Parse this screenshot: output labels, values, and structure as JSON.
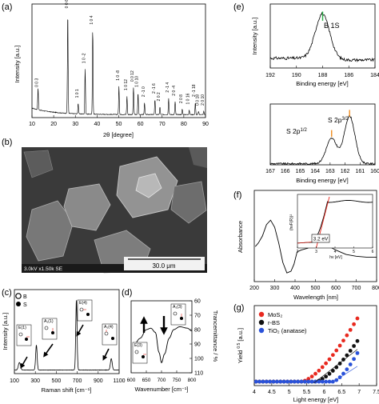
{
  "panels": {
    "a": "(a)",
    "b": "(b)",
    "c": "(c)",
    "d": "(d)",
    "e": "(e)",
    "f": "(f)",
    "g": "(g)"
  },
  "sem": {
    "info": "3.0kV x1.50k SE",
    "scale_bar": "30.0 μm"
  },
  "chart_data": [
    {
      "id": "a",
      "type": "line",
      "xlabel": "2θ [degree]",
      "ylabel": "Intensity [a.u.]",
      "xlim": [
        10,
        90
      ],
      "xticks": [
        10,
        20,
        30,
        40,
        50,
        60,
        70,
        80,
        90
      ],
      "peaks": [
        {
          "x": 12.8,
          "h": 0.2,
          "label": "0 0 3"
        },
        {
          "x": 26.5,
          "h": 0.93,
          "label": "0 0 6"
        },
        {
          "x": 31.3,
          "h": 0.1,
          "label": "1 0 1"
        },
        {
          "x": 34.5,
          "h": 0.42,
          "label": "1 0 -2"
        },
        {
          "x": 38.0,
          "h": 0.78,
          "label": "1 0 4"
        },
        {
          "x": 50.1,
          "h": 0.26,
          "label": "1 0 -8"
        },
        {
          "x": 53.8,
          "h": 0.17,
          "label": "1 0 12"
        },
        {
          "x": 56.8,
          "h": 0.25,
          "label": "0 0 12"
        },
        {
          "x": 58.9,
          "h": 0.2,
          "label": "1 0 10"
        },
        {
          "x": 61.9,
          "h": 0.11,
          "label": "2 -1 0"
        },
        {
          "x": 66.7,
          "h": 0.14,
          "label": "2 -1 6"
        },
        {
          "x": 69.0,
          "h": 0.07,
          "label": "2 0 2"
        },
        {
          "x": 73.0,
          "h": 0.15,
          "label": "2 -1 4"
        },
        {
          "x": 76.0,
          "h": 0.12,
          "label": "2 0 -4"
        },
        {
          "x": 79.3,
          "h": 0.05,
          "label": "2 0 8"
        },
        {
          "x": 82.5,
          "h": 0.04,
          "label": "1 0 16"
        },
        {
          "x": 85.3,
          "h": 0.11,
          "label": "2 -1 18"
        },
        {
          "x": 86.8,
          "h": 0.03,
          "label": "0 0 18"
        },
        {
          "x": 89.2,
          "h": 0.03,
          "label": "2 0 10"
        }
      ]
    },
    {
      "id": "c",
      "type": "line",
      "xlabel": "Raman shift [cm⁻¹]",
      "ylabel": "Intensity [a.u.]",
      "xlim": [
        100,
        1100
      ],
      "xticks": [
        100,
        300,
        500,
        700,
        900,
        1100
      ],
      "legend": [
        "B",
        "S"
      ],
      "peaks": [
        {
          "x": 148,
          "h": 0.1,
          "w": 14
        },
        {
          "x": 310,
          "h": 0.33,
          "w": 10
        },
        {
          "x": 692,
          "h": 0.92,
          "w": 9
        },
        {
          "x": 1025,
          "h": 0.15,
          "w": 12
        }
      ],
      "mode_labels": [
        "E(1)",
        "A₁(1)",
        "E(4)",
        "A₁(4)"
      ]
    },
    {
      "id": "d",
      "type": "line",
      "xlabel": "Wavenumber [cm⁻¹]",
      "ylabel": "Trancemittance / %",
      "xlim": [
        600,
        800
      ],
      "xticks": [
        600,
        650,
        700,
        750,
        800
      ],
      "ylim": [
        110,
        60
      ],
      "yticks": [
        60,
        70,
        80,
        90,
        100,
        110
      ],
      "mode_labels": [
        "A₁(3)",
        "E(3)"
      ],
      "points": [
        [
          605,
          92
        ],
        [
          630,
          86
        ],
        [
          650,
          80
        ],
        [
          665,
          79
        ],
        [
          680,
          82
        ],
        [
          692,
          96
        ],
        [
          700,
          103
        ],
        [
          710,
          97
        ],
        [
          725,
          86
        ],
        [
          740,
          80
        ],
        [
          760,
          78
        ],
        [
          785,
          79
        ],
        [
          800,
          81
        ]
      ]
    },
    {
      "id": "e1",
      "type": "line",
      "annotation": "B 1S",
      "xlabel": "Binding energy [eV]",
      "ylabel": "Intensity [a.u.]",
      "xlim": [
        192,
        184
      ],
      "xticks": [
        192,
        190,
        188,
        186,
        184
      ],
      "peak_center": 188.0,
      "peak_fwhm": 1.3
    },
    {
      "id": "e2",
      "type": "line",
      "annotations": [
        "S 2p1/2",
        "S 2p3/2"
      ],
      "xlabel": "Binding energy [eV]",
      "xlim": [
        167,
        160
      ],
      "xticks": [
        167,
        166,
        165,
        164,
        163,
        162,
        161,
        160
      ],
      "peaks": [
        {
          "x": 162.9,
          "h": 0.45
        },
        {
          "x": 161.7,
          "h": 0.85
        }
      ]
    },
    {
      "id": "f",
      "type": "line",
      "xlabel": "Wavelength [nm]",
      "ylabel": "Absorbance",
      "xlim": [
        200,
        800
      ],
      "xticks": [
        200,
        300,
        400,
        500,
        600,
        700,
        800
      ],
      "inset": {
        "xlabel": "hv [eV]",
        "ylabel": "(hvF(R))²",
        "xlim": [
          2,
          6
        ],
        "xticks": [
          2,
          3,
          4,
          5,
          6
        ],
        "bandgap_label": "3.2 eV"
      }
    },
    {
      "id": "g",
      "type": "scatter",
      "xlabel": "Light energy [eV]",
      "ylabel": "Yield ^0.5 [a.u.]",
      "xlim": [
        4,
        7.5
      ],
      "xticks": [
        4,
        4.5,
        5,
        5.5,
        6,
        6.5,
        7,
        7.5
      ],
      "series": [
        {
          "name": "MoS₂",
          "color": "#e8291f",
          "onset": 5.35,
          "k": 1.15
        },
        {
          "name": "r-BS",
          "color": "#111111",
          "onset": 5.75,
          "k": 0.75
        },
        {
          "name": "TiO₂ (anatase)",
          "color": "#2a52d9",
          "onset": 6.25,
          "k": 0.55
        }
      ]
    }
  ]
}
